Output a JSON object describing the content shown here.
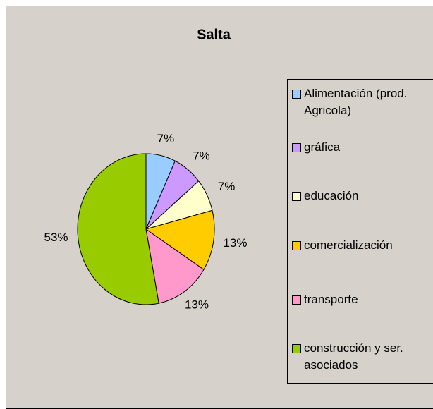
{
  "chart_data": {
    "type": "pie",
    "title": "Salta",
    "categories": [
      "Alimentación (prod. Agricola)",
      "gráfica",
      "educación",
      "comercialización",
      "transporte",
      "construcción y ser. asociados"
    ],
    "values": [
      7,
      7,
      7,
      13,
      13,
      53
    ],
    "value_labels": [
      "7%",
      "7%",
      "7%",
      "13%",
      "13%",
      "53%"
    ],
    "colors": [
      "#99ccff",
      "#cc99ff",
      "#ffffcc",
      "#ffcc00",
      "#ff99cc",
      "#99cc00"
    ],
    "legend": "right"
  }
}
